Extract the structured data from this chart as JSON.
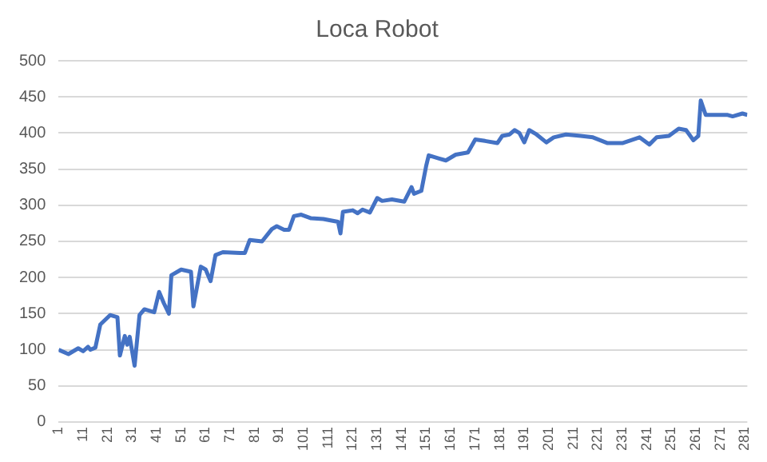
{
  "chart_data": {
    "type": "line",
    "title": "Loca Robot",
    "x": [
      1,
      5,
      9,
      11,
      13,
      14,
      16,
      18,
      22,
      25,
      26,
      28,
      29,
      30,
      32,
      34,
      36,
      40,
      42,
      44,
      46,
      47,
      51,
      55,
      56,
      59,
      61,
      63,
      65,
      68,
      75,
      77,
      79,
      84,
      88,
      90,
      93,
      95,
      97,
      100,
      104,
      109,
      115,
      116,
      117,
      121,
      123,
      125,
      128,
      131,
      133,
      137,
      142,
      145,
      146,
      149,
      151,
      152,
      156,
      159,
      163,
      168,
      171,
      175,
      180,
      182,
      185,
      187,
      189,
      191,
      193,
      196,
      200,
      203,
      208,
      214,
      219,
      225,
      231,
      238,
      242,
      245,
      250,
      254,
      257,
      260,
      262,
      263,
      265,
      274,
      276,
      280,
      282
    ],
    "series": [
      {
        "color": "#4472c4",
        "values": [
          100,
          94,
          102,
          98,
          104,
          100,
          103,
          135,
          148,
          145,
          92,
          119,
          107,
          118,
          78,
          148,
          156,
          152,
          180,
          164,
          150,
          203,
          211,
          208,
          160,
          215,
          211,
          195,
          231,
          235,
          234,
          234,
          252,
          250,
          267,
          271,
          266,
          266,
          285,
          287,
          282,
          281,
          277,
          261,
          291,
          293,
          289,
          294,
          290,
          310,
          306,
          308,
          305,
          325,
          316,
          320,
          355,
          369,
          365,
          362,
          370,
          373,
          391,
          389,
          386,
          396,
          398,
          404,
          400,
          387,
          404,
          398,
          387,
          394,
          398,
          396,
          394,
          386,
          386,
          394,
          384,
          394,
          396,
          406,
          404,
          390,
          396,
          445,
          425,
          425,
          423,
          427,
          425
        ]
      }
    ],
    "xlim": [
      1,
      282
    ],
    "xticks": [
      1,
      11,
      21,
      31,
      41,
      51,
      61,
      71,
      81,
      91,
      101,
      111,
      121,
      131,
      141,
      151,
      161,
      171,
      181,
      191,
      201,
      211,
      221,
      231,
      241,
      251,
      261,
      271,
      281
    ],
    "ylim": [
      0,
      500
    ],
    "yticks": [
      0,
      50,
      100,
      150,
      200,
      250,
      300,
      350,
      400,
      450,
      500
    ],
    "grid": "y",
    "legend": false,
    "marker": "none",
    "line_style": "solid"
  }
}
